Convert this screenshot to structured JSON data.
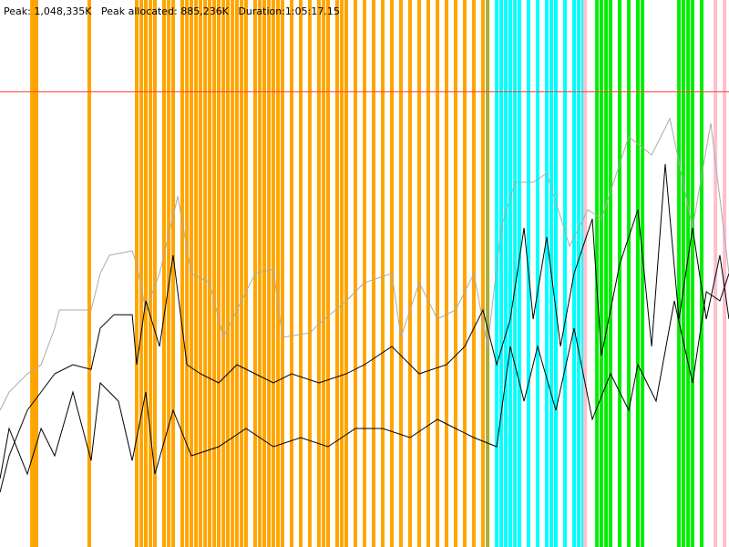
{
  "chart_data": {
    "type": "gc",
    "title": "Peak: 1,048,335K   Peak allocated: 885,236K   Duration:1:05:17.15",
    "xlim": [
      0,
      3920
    ],
    "ylim": [
      0,
      1260000
    ],
    "max_heap": {
      "value": 1048335,
      "color": "#ff4040"
    },
    "events": [
      {
        "color": "#ffa500",
        "x": [
          172,
          181,
          196,
          480,
          735,
          760,
          784,
          809,
          833,
          882,
          907,
          931,
          980,
          1005,
          1029,
          1054,
          1078,
          1103,
          1127,
          1152,
          1176,
          1201,
          1225,
          1250,
          1274,
          1299,
          1323,
          1372,
          1397,
          1421,
          1446,
          1470,
          1495,
          1519,
          1568,
          1617,
          1666,
          1715,
          1740,
          1764,
          1813,
          1838,
          1862,
          1911,
          1960,
          2009,
          2058,
          2107,
          2156,
          2205,
          2254,
          2303,
          2352,
          2401,
          2450,
          2499,
          2548,
          2597
        ]
      },
      {
        "color": "#a0b040",
        "x": [
          2622
        ]
      },
      {
        "color": "#00ffff",
        "x": [
          2671,
          2695,
          2720,
          2744,
          2769,
          2793,
          2842,
          2891,
          2940,
          2965,
          2989,
          3038,
          3087,
          3112,
          3136
        ]
      },
      {
        "color": "#00ee00",
        "x": [
          3210,
          3234,
          3259,
          3283,
          3332,
          3381,
          3430,
          3455,
          3651,
          3675,
          3700,
          3724,
          3773
        ]
      },
      {
        "color": "#ffc0cb",
        "x": [
          3146,
          3847,
          3896
        ]
      }
    ],
    "series": [
      {
        "color": "#aaaaaa",
        "x": [
          0,
          49,
          147,
          221,
          294,
          319,
          490,
          539,
          588,
          711,
          735,
          784,
          858,
          956,
          1029,
          1127,
          1201,
          1372,
          1470,
          1519,
          1666,
          1715,
          1862,
          1960,
          2107,
          2156,
          2254,
          2352,
          2450,
          2548,
          2622,
          2695,
          2769,
          2867,
          2940,
          3063,
          3161,
          3234,
          3381,
          3504,
          3602,
          3724,
          3822,
          3920
        ],
        "values": [
          315000,
          357000,
          399000,
          420000,
          504000,
          546000,
          546000,
          630000,
          672000,
          682000,
          651000,
          546000,
          630000,
          808000,
          630000,
          609000,
          483000,
          630000,
          640000,
          483000,
          493000,
          514000,
          567000,
          609000,
          630000,
          483000,
          609000,
          525000,
          546000,
          630000,
          462000,
          735000,
          840000,
          840000,
          861000,
          693000,
          777000,
          756000,
          945000,
          903000,
          987000,
          735000,
          976000,
          630000
        ]
      },
      {
        "color": "#000000",
        "x": [
          0,
          49,
          147,
          221,
          294,
          392,
          490,
          539,
          613,
          711,
          735,
          784,
          858,
          931,
          1005,
          1078,
          1176,
          1274,
          1372,
          1470,
          1568,
          1715,
          1862,
          1960,
          2107,
          2254,
          2401,
          2499,
          2597,
          2671,
          2744,
          2818,
          2867,
          2940,
          3014,
          3087,
          3185,
          3234,
          3332,
          3430,
          3504,
          3577,
          3651,
          3724,
          3798,
          3871,
          3920
        ],
        "values": [
          126000,
          210000,
          315000,
          357000,
          399000,
          420000,
          409000,
          504000,
          535000,
          535000,
          420000,
          567000,
          462000,
          672000,
          420000,
          399000,
          378000,
          420000,
          399000,
          378000,
          399000,
          378000,
          399000,
          420000,
          462000,
          399000,
          420000,
          462000,
          546000,
          420000,
          525000,
          735000,
          525000,
          714000,
          462000,
          630000,
          756000,
          441000,
          651000,
          777000,
          462000,
          882000,
          525000,
          735000,
          525000,
          672000,
          525000
        ]
      },
      {
        "color": "#000000",
        "x": [
          0,
          49,
          147,
          221,
          294,
          392,
          490,
          539,
          637,
          711,
          784,
          833,
          931,
          1029,
          1176,
          1323,
          1470,
          1617,
          1764,
          1911,
          2058,
          2205,
          2352,
          2450,
          2548,
          2671,
          2744,
          2818,
          2891,
          2989,
          3087,
          3185,
          3283,
          3381,
          3430,
          3528,
          3626,
          3724,
          3798,
          3871,
          3920
        ],
        "values": [
          157000,
          273000,
          168000,
          273000,
          210000,
          357000,
          199000,
          378000,
          336000,
          199000,
          357000,
          168000,
          315000,
          210000,
          231000,
          273000,
          231000,
          252000,
          231000,
          273000,
          273000,
          252000,
          294000,
          273000,
          252000,
          231000,
          462000,
          336000,
          462000,
          315000,
          504000,
          294000,
          399000,
          315000,
          420000,
          336000,
          567000,
          378000,
          588000,
          567000,
          630000
        ]
      }
    ]
  }
}
